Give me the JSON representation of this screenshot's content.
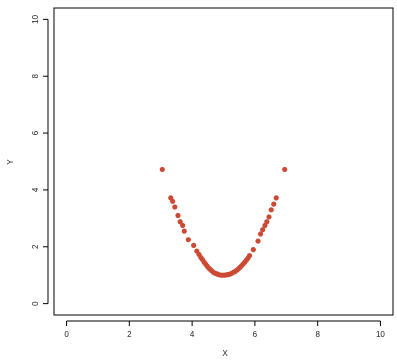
{
  "chart_data": {
    "type": "scatter",
    "title": "",
    "xlabel": "X",
    "ylabel": "Y",
    "xlim": [
      -0.4,
      10.4
    ],
    "ylim": [
      -0.4,
      10.4
    ],
    "xticks": [
      0,
      2,
      4,
      6,
      8,
      10
    ],
    "yticks": [
      0,
      2,
      4,
      6,
      8,
      10
    ],
    "grid": false,
    "point_color": "#cc4a33",
    "series": [
      {
        "x": [
          3.05,
          3.32,
          3.38,
          3.45,
          3.55,
          3.62,
          3.7,
          3.75,
          3.88,
          4.05,
          4.15,
          4.22,
          4.28,
          4.33,
          4.38,
          4.43,
          4.48,
          4.53,
          4.58,
          4.63,
          4.68,
          4.73,
          4.78,
          4.83,
          4.88,
          4.93,
          4.98,
          5.03,
          5.08,
          5.13,
          5.18,
          5.23,
          5.28,
          5.33,
          5.38,
          5.43,
          5.48,
          5.53,
          5.58,
          5.63,
          5.68,
          5.73,
          5.78,
          5.83,
          5.95,
          6.1,
          6.18,
          6.25,
          6.32,
          6.38,
          6.45,
          6.52,
          6.6,
          6.68,
          6.95
        ],
        "y": [
          4.72,
          3.72,
          3.6,
          3.4,
          3.1,
          2.88,
          2.75,
          2.55,
          2.25,
          2.05,
          1.85,
          1.73,
          1.62,
          1.55,
          1.46,
          1.39,
          1.32,
          1.25,
          1.2,
          1.15,
          1.1,
          1.07,
          1.05,
          1.03,
          1.01,
          1.0,
          1.0,
          1.0,
          1.01,
          1.02,
          1.03,
          1.05,
          1.08,
          1.11,
          1.14,
          1.18,
          1.23,
          1.28,
          1.34,
          1.4,
          1.46,
          1.53,
          1.6,
          1.69,
          1.9,
          2.2,
          2.45,
          2.6,
          2.75,
          2.88,
          3.05,
          3.3,
          3.5,
          3.72,
          4.72
        ]
      }
    ]
  }
}
